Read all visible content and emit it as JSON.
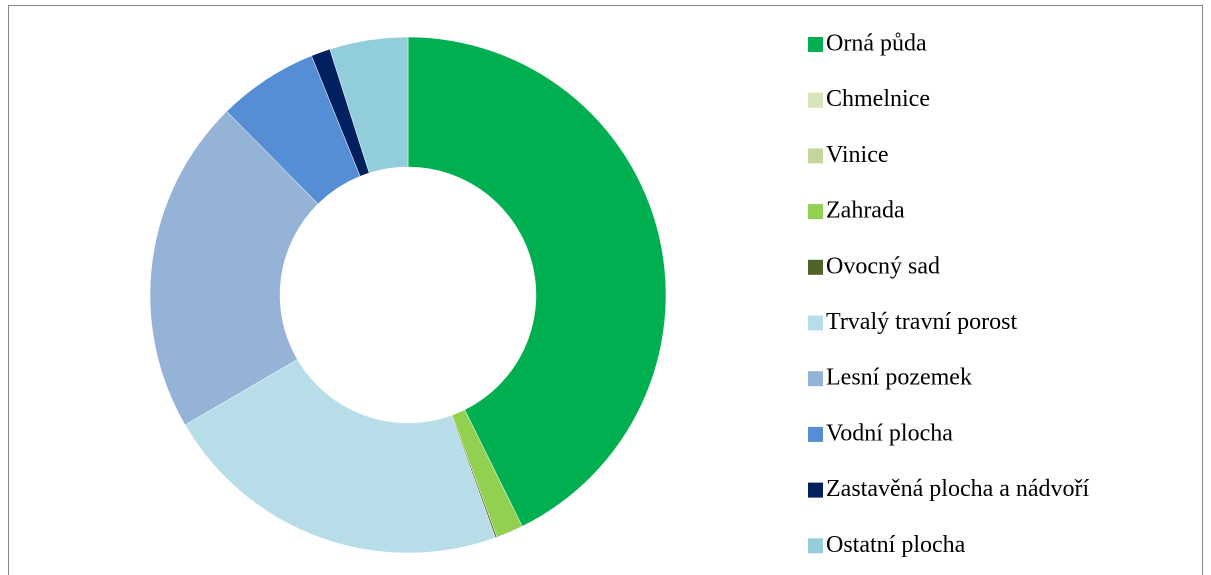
{
  "chart_data": {
    "type": "donut",
    "categories": [
      "Orná půda",
      "Chmelnice",
      "Vinice",
      "Zahrada",
      "Ovocný sad",
      "Trvalý travní porost",
      "Lesní pozemek",
      "Vodní plocha",
      "Zastavěná plocha a nádvoří",
      "Ostatní plocha"
    ],
    "values": [
      42.7,
      0,
      0,
      1.7,
      0.1,
      22.1,
      21.0,
      6.3,
      1.2,
      4.9
    ],
    "colors": [
      "#00b050",
      "#d8e4bc",
      "#c4d79b",
      "#92d050",
      "#4f6228",
      "#b7dde8",
      "#95b3d7",
      "#558ed5",
      "#002060",
      "#92cddc"
    ],
    "legend": "right"
  }
}
